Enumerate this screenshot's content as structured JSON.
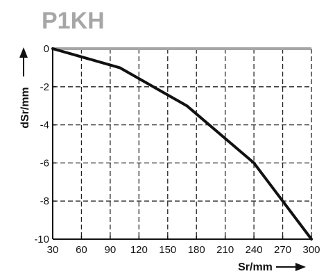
{
  "chart_data": {
    "type": "line",
    "title": "P1KH",
    "xlabel": "Sr/mm",
    "ylabel": "dSr/mm",
    "xlim": [
      30,
      300
    ],
    "ylim": [
      -10,
      0
    ],
    "x_ticks": [
      30,
      60,
      90,
      120,
      150,
      180,
      210,
      240,
      270,
      300
    ],
    "y_ticks": [
      0,
      -2,
      -4,
      -6,
      -8,
      -10
    ],
    "x_tick_labels": [
      "30",
      "60",
      "90",
      "120",
      "150",
      "180",
      "210",
      "240",
      "270",
      "300"
    ],
    "y_tick_labels": [
      "0",
      "-2",
      "-4",
      "-6",
      "-8",
      "-10"
    ],
    "grid": true,
    "series": [
      {
        "x": [
          30,
          100,
          170,
          240,
          300
        ],
        "y": [
          0,
          -1,
          -3,
          -6,
          -10
        ]
      }
    ],
    "colors": {
      "title": "#a6a6a6",
      "line": "#111111",
      "zero_line": "#a6a6a6",
      "grid": "#222222",
      "axis": "#111111"
    }
  }
}
